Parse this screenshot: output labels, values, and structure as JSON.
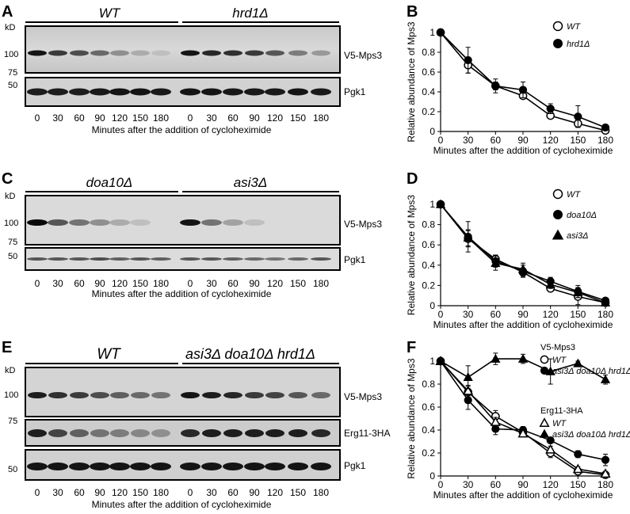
{
  "panels": {
    "A": {
      "label": "A",
      "groups": [
        {
          "name": "WT"
        },
        {
          "name": "hrd1Δ"
        }
      ],
      "kd": "kD",
      "marker_labels": {
        "m100": "100",
        "m75": "75",
        "m50": "50"
      },
      "blot_labels": {
        "top": "V5-Mps3",
        "bottom": "Pgk1"
      },
      "lanes": [
        "0",
        "30",
        "60",
        "90",
        "120",
        "150",
        "180",
        "0",
        "30",
        "60",
        "90",
        "120",
        "150",
        "180"
      ],
      "xlabel": "Minutes after the addition of cycloheximide"
    },
    "C": {
      "label": "C",
      "groups": [
        {
          "name": "doa10Δ"
        },
        {
          "name": "asi3Δ"
        }
      ],
      "kd": "kD",
      "marker_labels": {
        "m100": "100",
        "m75": "75",
        "m50": "50"
      },
      "blot_labels": {
        "top": "V5-Mps3",
        "bottom": "Pgk1"
      },
      "lanes": [
        "0",
        "30",
        "60",
        "90",
        "120",
        "150",
        "180",
        "0",
        "30",
        "60",
        "90",
        "120",
        "150",
        "180"
      ],
      "xlabel": "Minutes after the addition of cycloheximide"
    },
    "E": {
      "label": "E",
      "groups": [
        {
          "name": "WT"
        },
        {
          "name": "asi3Δ doa10Δ hrd1Δ"
        }
      ],
      "kd": "kD",
      "marker_labels": {
        "m100": "100",
        "m75": "75",
        "m50": "50"
      },
      "blot_labels": {
        "top": "V5-Mps3",
        "middle": "Erg11-3HA",
        "bottom": "Pgk1"
      },
      "lanes": [
        "0",
        "30",
        "60",
        "90",
        "120",
        "150",
        "180",
        "0",
        "30",
        "60",
        "90",
        "120",
        "150",
        "180"
      ],
      "xlabel": "Minutes after the addition of cycloheximide"
    }
  },
  "chart_data": [
    {
      "panel": "B",
      "type": "line",
      "xlabel": "Minutes after the addition of cycloheximide",
      "ylabel": "Relative abundance of Mps3",
      "x": [
        0,
        30,
        60,
        90,
        120,
        150,
        180
      ],
      "xlim": [
        0,
        180
      ],
      "ylim": [
        0,
        1
      ],
      "xticks": [
        "0",
        "30",
        "60",
        "90",
        "120",
        "150",
        "180"
      ],
      "yticks": [
        "0",
        "0.2",
        "0.4",
        "0.6",
        "0.8",
        "1"
      ],
      "legend_position": "top-right",
      "series": [
        {
          "name": "WT",
          "marker": "open-circle",
          "values": [
            1,
            0.67,
            0.46,
            0.36,
            0.16,
            0.08,
            0.01
          ],
          "err": [
            0,
            0.08,
            0.04,
            0.03,
            0.02,
            0.04,
            0.01
          ]
        },
        {
          "name": "hrd1Δ",
          "marker": "filled-circle",
          "values": [
            1,
            0.72,
            0.46,
            0.42,
            0.23,
            0.15,
            0.04
          ],
          "err": [
            0,
            0.13,
            0.07,
            0.08,
            0.05,
            0.11,
            0.01
          ]
        }
      ]
    },
    {
      "panel": "D",
      "type": "line",
      "xlabel": "Minutes after the addition of cycloheximide",
      "ylabel": "Relative abundance of Mps3",
      "x": [
        0,
        30,
        60,
        90,
        120,
        150,
        180
      ],
      "xlim": [
        0,
        180
      ],
      "ylim": [
        0,
        1
      ],
      "xticks": [
        "0",
        "30",
        "60",
        "90",
        "120",
        "150",
        "180"
      ],
      "yticks": [
        "0",
        "0.2",
        "0.4",
        "0.6",
        "0.8",
        "1"
      ],
      "legend_position": "top-right",
      "series": [
        {
          "name": "WT",
          "marker": "open-circle",
          "values": [
            1,
            0.66,
            0.46,
            0.33,
            0.17,
            0.09,
            0.03
          ],
          "err": [
            0,
            0.08,
            0.04,
            0.04,
            0.03,
            0.08,
            0.02
          ]
        },
        {
          "name": "doa10Δ",
          "marker": "filled-circle",
          "values": [
            1,
            0.68,
            0.44,
            0.34,
            0.24,
            0.14,
            0.05
          ],
          "err": [
            0,
            0.15,
            0.06,
            0.06,
            0.04,
            0.06,
            0.02
          ]
        },
        {
          "name": "asi3Δ",
          "marker": "filled-triangle",
          "values": [
            1,
            0.67,
            0.42,
            0.36,
            0.21,
            0.13,
            0.03
          ],
          "err": [
            0,
            0.08,
            0.07,
            0.06,
            0.04,
            0.05,
            0.02
          ]
        }
      ]
    },
    {
      "panel": "F",
      "type": "line",
      "xlabel": "Minutes after the addition of cycloheximide",
      "ylabel": "Relative abundance of Mps3",
      "x": [
        0,
        30,
        60,
        90,
        120,
        150,
        180
      ],
      "xlim": [
        0,
        180
      ],
      "ylim": [
        0,
        1
      ],
      "xticks": [
        "0",
        "30",
        "60",
        "90",
        "120",
        "150",
        "180"
      ],
      "yticks": [
        "0",
        "0.2",
        "0.4",
        "0.6",
        "0.8",
        "1"
      ],
      "legend_position": "top-right",
      "legend_groups": [
        "V5-Mps3",
        "Erg11-3HA"
      ],
      "series": [
        {
          "name": "WT",
          "group": "V5-Mps3",
          "marker": "open-circle",
          "values": [
            1,
            0.73,
            0.52,
            0.38,
            0.2,
            0.04,
            0.01
          ],
          "err": [
            0,
            0.05,
            0.05,
            0.03,
            0.04,
            0.02,
            0.02
          ]
        },
        {
          "name": "asi3Δ doa10Δ hrd1Δ",
          "group": "V5-Mps3",
          "marker": "filled-circle",
          "values": [
            1,
            0.66,
            0.41,
            0.4,
            0.31,
            0.19,
            0.14
          ],
          "err": [
            0,
            0.08,
            0.05,
            0.03,
            0.02,
            0.03,
            0.05
          ]
        },
        {
          "name": "WT",
          "group": "Erg11-3HA",
          "marker": "open-triangle",
          "values": [
            1,
            0.74,
            0.47,
            0.37,
            0.23,
            0.06,
            0.02
          ],
          "err": [
            0,
            0.05,
            0.04,
            0.03,
            0.03,
            0.02,
            0.02
          ]
        },
        {
          "name": "asi3Δ doa10Δ hrd1Δ",
          "group": "Erg11-3HA",
          "marker": "filled-triangle",
          "values": [
            1,
            0.86,
            1.02,
            1.02,
            0.91,
            0.98,
            0.84
          ],
          "err": [
            0,
            0.1,
            0.05,
            0.04,
            0.11,
            0.02,
            0.04
          ]
        }
      ]
    }
  ]
}
